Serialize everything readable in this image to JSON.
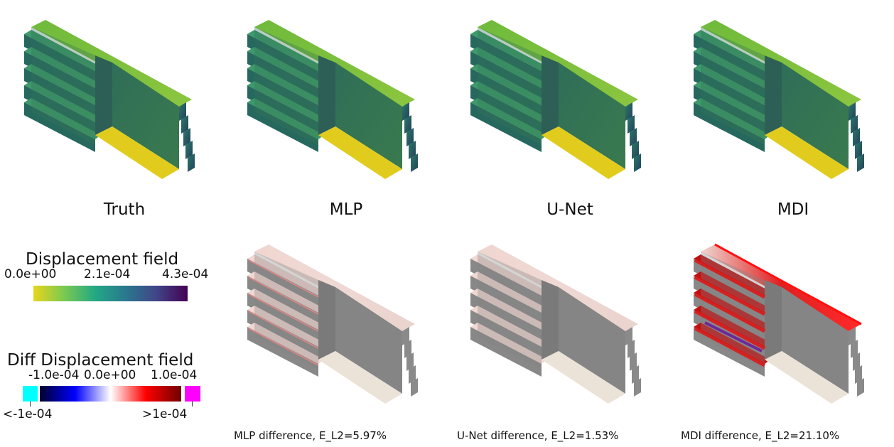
{
  "panels": [
    {
      "label": "Truth",
      "kind": "field"
    },
    {
      "label": "MLP",
      "kind": "field"
    },
    {
      "label": "U-Net",
      "kind": "field"
    },
    {
      "label": "MDI",
      "kind": "field"
    }
  ],
  "diff_panels": [
    {
      "label": "MLP difference, E_L2=5.97%",
      "kind": "diff",
      "intensity": 0.35
    },
    {
      "label": "U-Net difference, E_L2=1.53%",
      "kind": "diff",
      "intensity": 0.08
    },
    {
      "label": "MDI difference, E_L2=21.10%",
      "kind": "diff",
      "intensity": 1.0
    }
  ],
  "colorbar_displacement": {
    "title": "Displacement field",
    "ticks": [
      "0.0e+00",
      "2.1e-04",
      "4.3e-04"
    ],
    "colors": [
      "#e8d51c",
      "#7ac951",
      "#22a884",
      "#2a788e",
      "#414487",
      "#440154"
    ]
  },
  "colorbar_diff": {
    "title": "Diff Displacement field",
    "ticks": [
      "-1.0e-04",
      "0.0e+00",
      "1.0e-04"
    ],
    "under_label": "<-1e-04",
    "over_label": ">1e-04",
    "under_color": "#00ffff",
    "over_color": "#ff00ff",
    "colors": [
      "#000030",
      "#0000ff",
      "#ffffff",
      "#ff0000",
      "#700000"
    ]
  }
}
